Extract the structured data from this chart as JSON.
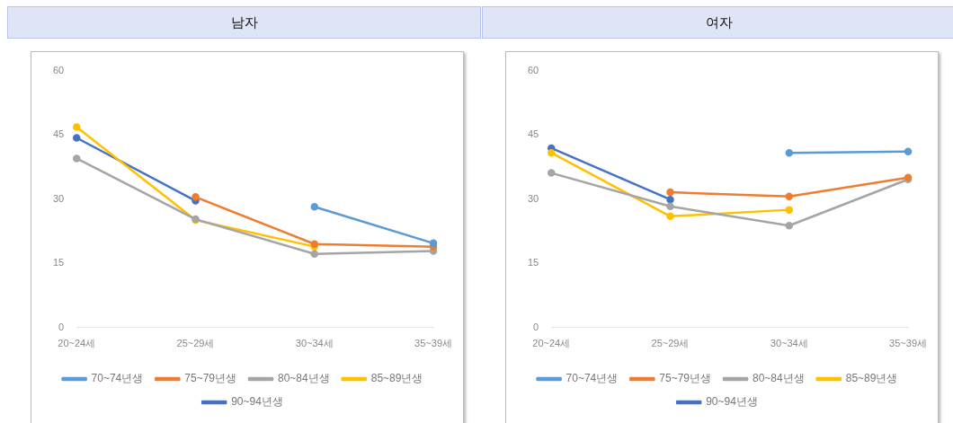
{
  "chart_data": [
    {
      "type": "line",
      "title": "남자",
      "categories": [
        "20~24세",
        "25~29세",
        "30~34세",
        "35~39세"
      ],
      "ylim": [
        0,
        60
      ],
      "yticks": [
        0,
        15,
        30,
        45,
        60
      ],
      "grid": false,
      "legend": "bottom",
      "marker": "circle",
      "line_style": "solid",
      "series": [
        {
          "name": "70~74년생",
          "color": "#5b9bd5",
          "values": [
            null,
            null,
            28.2,
            19.7
          ]
        },
        {
          "name": "75~79년생",
          "color": "#ed7d31",
          "values": [
            null,
            30.5,
            19.5,
            18.9
          ]
        },
        {
          "name": "80~84년생",
          "color": "#a5a5a5",
          "values": [
            39.5,
            25.3,
            17.2,
            17.9
          ]
        },
        {
          "name": "85~89년생",
          "color": "#ffc000",
          "values": [
            46.8,
            25.1,
            18.9,
            null
          ]
        },
        {
          "name": "90~94년생",
          "color": "#4472c4",
          "values": [
            44.3,
            29.6,
            null,
            null
          ]
        }
      ]
    },
    {
      "type": "line",
      "title": "여자",
      "categories": [
        "20~24세",
        "25~29세",
        "30~34세",
        "35~39세"
      ],
      "ylim": [
        0,
        60
      ],
      "yticks": [
        0,
        15,
        30,
        45,
        60
      ],
      "grid": false,
      "legend": "bottom",
      "marker": "circle",
      "line_style": "solid",
      "series": [
        {
          "name": "70~74년생",
          "color": "#5b9bd5",
          "values": [
            null,
            null,
            40.8,
            41.1
          ]
        },
        {
          "name": "75~79년생",
          "color": "#ed7d31",
          "values": [
            null,
            31.6,
            30.6,
            35.0
          ]
        },
        {
          "name": "80~84년생",
          "color": "#a5a5a5",
          "values": [
            36.1,
            28.3,
            23.8,
            34.6
          ]
        },
        {
          "name": "85~89년생",
          "color": "#ffc000",
          "values": [
            40.8,
            26.0,
            27.5,
            null
          ]
        },
        {
          "name": "90~94년생",
          "color": "#4472c4",
          "values": [
            41.9,
            29.9,
            null,
            null
          ]
        }
      ]
    }
  ]
}
